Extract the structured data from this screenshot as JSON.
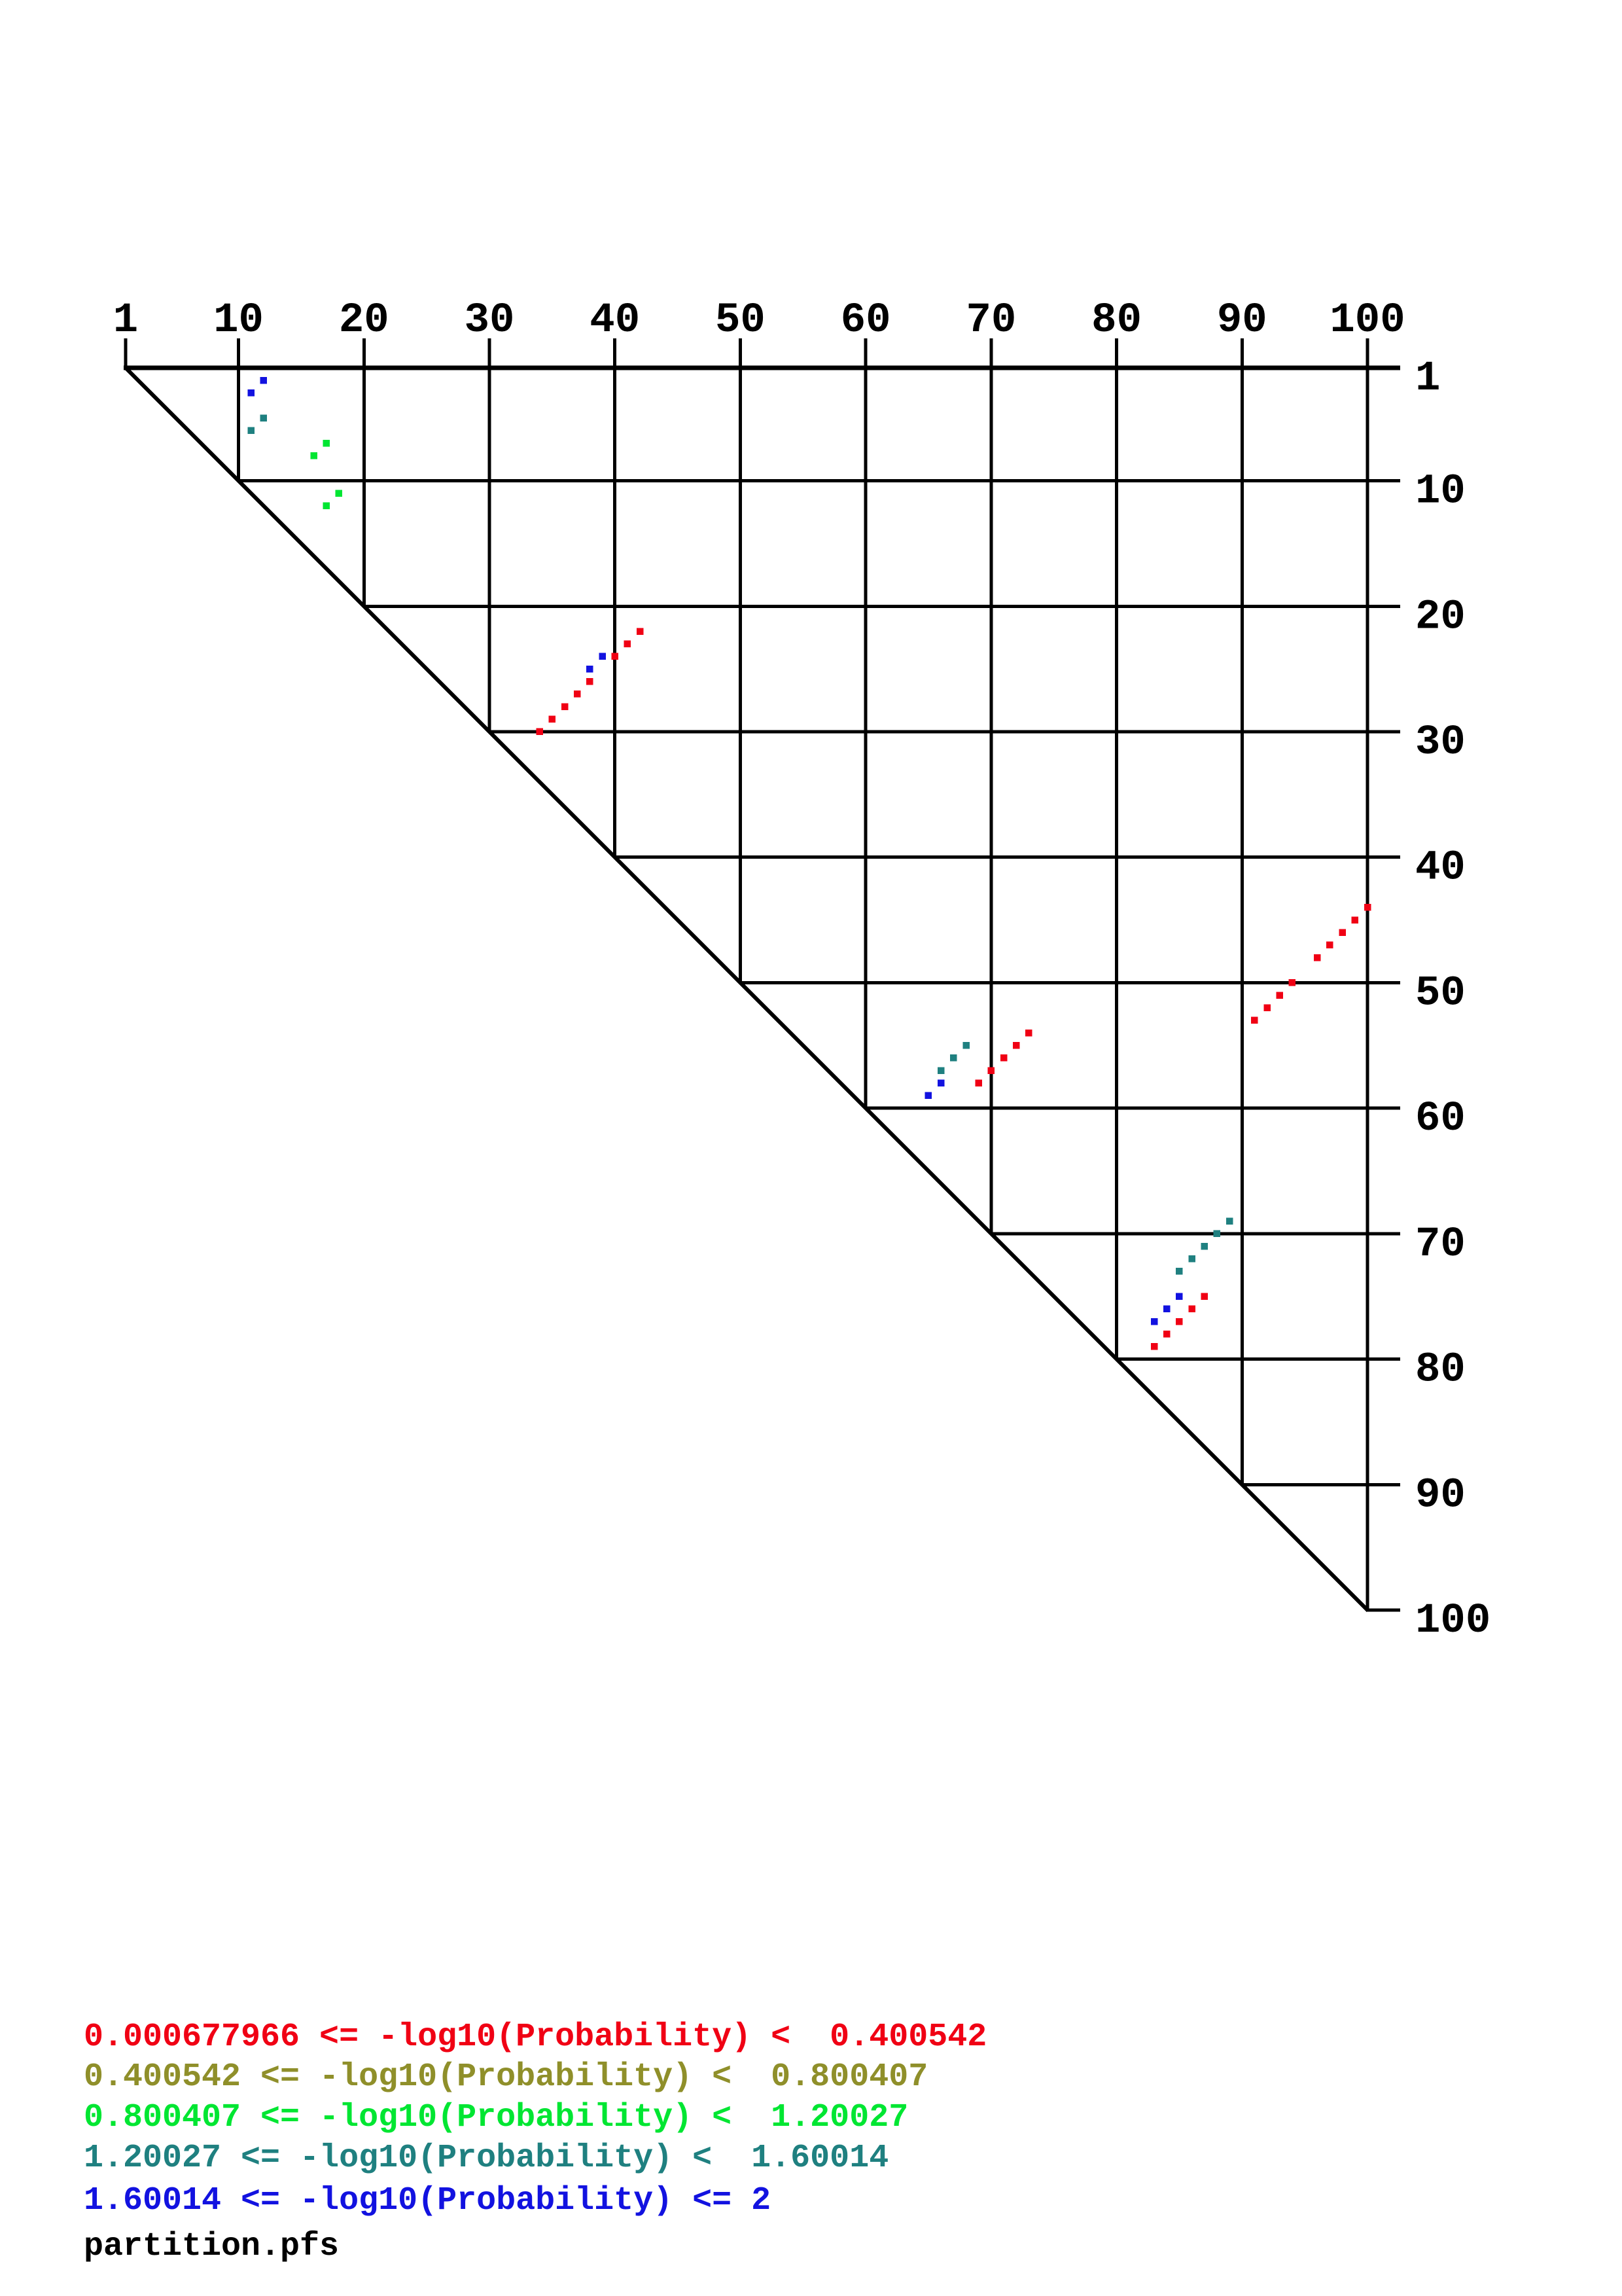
{
  "page": {
    "background": "#ffffff"
  },
  "chart_data": {
    "type": "scatter",
    "title": "",
    "plot_shape": "upper-triangle self-comparison dot plot",
    "x_axis": {
      "side": "top",
      "ticks": [
        1,
        10,
        20,
        30,
        40,
        50,
        60,
        70,
        80,
        90,
        100
      ],
      "range": [
        1,
        100
      ]
    },
    "y_axis": {
      "side": "right",
      "ticks": [
        1,
        10,
        20,
        30,
        40,
        50,
        60,
        70,
        80,
        90,
        100
      ],
      "range": [
        1,
        100
      ]
    },
    "grid": true,
    "diagonal": true,
    "legend_position": "bottom-left",
    "palette": {
      "red": "#f00014",
      "olive": "#8f8f2a",
      "green": "#00e632",
      "teal": "#1f8080",
      "blue": "#1212e0"
    },
    "series": [
      {
        "name": "0.000677966 <= -log10(Probability) < 0.400542",
        "color_key": "red",
        "points": [
          [
            42,
            22
          ],
          [
            41,
            23
          ],
          [
            40,
            24
          ],
          [
            38,
            26
          ],
          [
            37,
            27
          ],
          [
            36,
            28
          ],
          [
            35,
            29
          ],
          [
            34,
            30
          ],
          [
            100,
            44
          ],
          [
            99,
            45
          ],
          [
            98,
            46
          ],
          [
            97,
            47
          ],
          [
            96,
            48
          ],
          [
            94,
            50
          ],
          [
            93,
            51
          ],
          [
            92,
            52
          ],
          [
            91,
            53
          ],
          [
            73,
            54
          ],
          [
            72,
            55
          ],
          [
            71,
            56
          ],
          [
            70,
            57
          ],
          [
            69,
            58
          ],
          [
            87,
            75
          ],
          [
            86,
            76
          ],
          [
            85,
            77
          ],
          [
            84,
            78
          ],
          [
            83,
            79
          ]
        ]
      },
      {
        "name": "0.400542 <= -log10(Probability) < 0.800407",
        "color_key": "olive",
        "points": []
      },
      {
        "name": "0.800407 <= -log10(Probability) < 1.20027",
        "color_key": "green",
        "points": [
          [
            17,
            7
          ],
          [
            16,
            8
          ],
          [
            18,
            11
          ],
          [
            17,
            12
          ]
        ]
      },
      {
        "name": "1.20027 <= -log10(Probability) < 1.60014",
        "color_key": "teal",
        "points": [
          [
            12,
            5
          ],
          [
            11,
            6
          ],
          [
            68,
            55
          ],
          [
            67,
            56
          ],
          [
            66,
            57
          ],
          [
            89,
            69
          ],
          [
            88,
            70
          ],
          [
            87,
            71
          ],
          [
            86,
            72
          ],
          [
            85,
            73
          ]
        ]
      },
      {
        "name": "1.60014 <= -log10(Probability) <= 2",
        "color_key": "blue",
        "points": [
          [
            12,
            2
          ],
          [
            11,
            3
          ],
          [
            39,
            24
          ],
          [
            38,
            25
          ],
          [
            66,
            58
          ],
          [
            65,
            59
          ],
          [
            85,
            75
          ],
          [
            84,
            76
          ],
          [
            83,
            77
          ]
        ]
      }
    ]
  },
  "legend": {
    "entries": [
      {
        "text": "0.000677966 <= -log10(Probability) <  0.400542",
        "color": "#f00014"
      },
      {
        "text": "0.400542 <= -log10(Probability) <  0.800407",
        "color": "#8f8f2a"
      },
      {
        "text": "0.800407 <= -log10(Probability) <  1.20027",
        "color": "#00e632"
      },
      {
        "text": "1.20027 <= -log10(Probability) <  1.60014",
        "color": "#1f8080"
      },
      {
        "text": "1.60014 <= -log10(Probability) <= 2",
        "color": "#1212e0"
      }
    ]
  },
  "footer": {
    "filename": "partition.pfs"
  }
}
